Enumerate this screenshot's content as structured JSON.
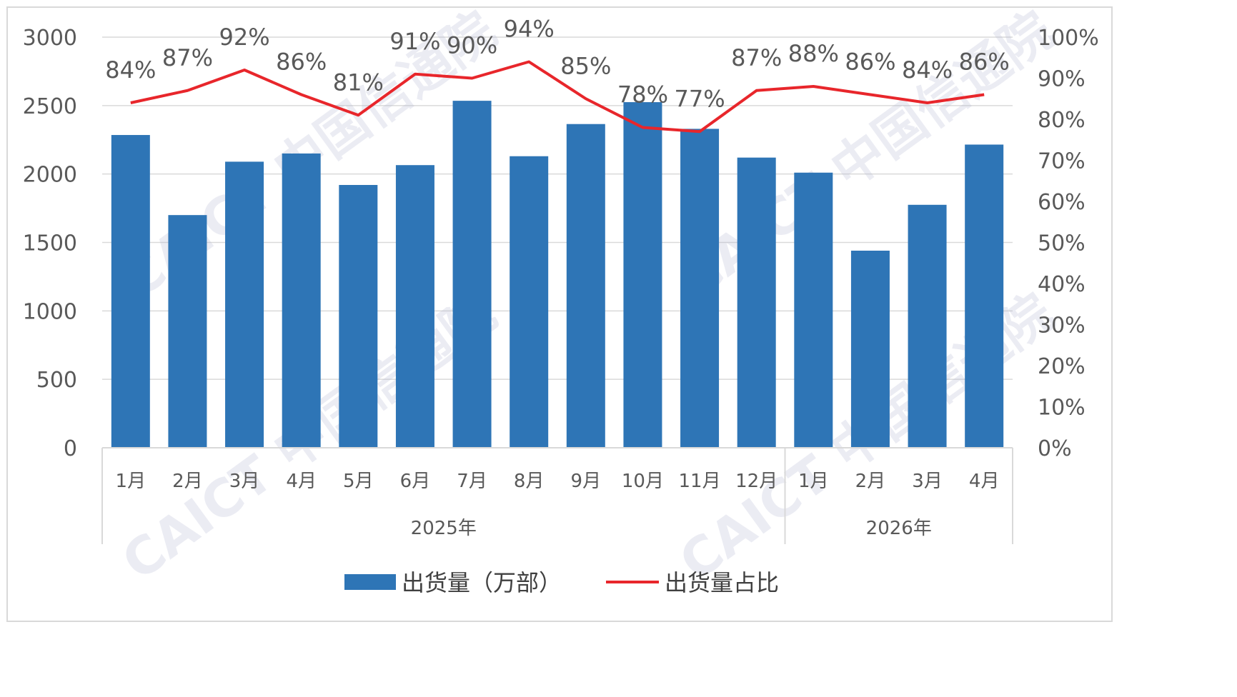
{
  "chart_data": {
    "type": "bar",
    "categories": [
      "1月",
      "2月",
      "3月",
      "4月",
      "5月",
      "6月",
      "7月",
      "8月",
      "9月",
      "10月",
      "11月",
      "12月",
      "1月",
      "2月",
      "3月",
      "4月"
    ],
    "groups": [
      {
        "label": "2025年",
        "count": 12
      },
      {
        "label": "2026年",
        "count": 4
      }
    ],
    "series": [
      {
        "name": "出货量（万部）",
        "type": "bar",
        "axis": "left",
        "color": "#2e75b6",
        "values": [
          2285,
          1700,
          2090,
          2150,
          1920,
          2065,
          2535,
          2130,
          2365,
          2525,
          2330,
          2120,
          2010,
          1440,
          1775,
          2215
        ]
      },
      {
        "name": "出货量占比",
        "type": "line",
        "axis": "right",
        "color": "#e8262b",
        "values": [
          84,
          87,
          92,
          86,
          81,
          91,
          90,
          94,
          85,
          78,
          77,
          87,
          88,
          86,
          84,
          86
        ],
        "labels": [
          "84%",
          "87%",
          "92%",
          "86%",
          "81%",
          "91%",
          "90%",
          "94%",
          "85%",
          "78%",
          "77%",
          "87%",
          "88%",
          "86%",
          "84%",
          "86%"
        ]
      }
    ],
    "y_left": {
      "min": 0,
      "max": 3000,
      "step": 500,
      "tick_labels": [
        "0",
        "500",
        "1000",
        "1500",
        "2000",
        "2500",
        "3000"
      ]
    },
    "y_right": {
      "min": 0,
      "max": 100,
      "step": 10,
      "tick_labels": [
        "0%",
        "10%",
        "20%",
        "30%",
        "40%",
        "50%",
        "60%",
        "70%",
        "80%",
        "90%",
        "100%"
      ]
    },
    "grid": true,
    "legend_position": "bottom"
  },
  "legend": {
    "bar_label": "出货量（万部）",
    "line_label": "出货量占比"
  },
  "watermark": {
    "text": "CAICT 中国信通院",
    "color": "#b8bcd4"
  }
}
